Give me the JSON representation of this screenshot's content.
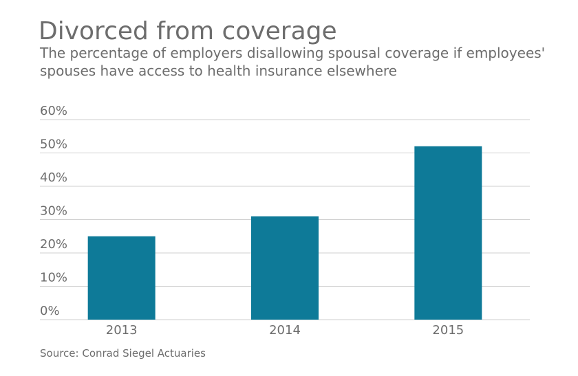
{
  "chart_data": {
    "type": "bar",
    "title": "Divorced from coverage",
    "subtitle": "The percentage of employers disallowing spousal coverage if employees' spouses have access to health insurance elsewhere",
    "categories": [
      "2013",
      "2014",
      "2015"
    ],
    "values": [
      25,
      31,
      52
    ],
    "value_unit": "%",
    "ylim": [
      0,
      60
    ],
    "yticks": [
      "0%",
      "10%",
      "20%",
      "30%",
      "40%",
      "50%",
      "60%"
    ],
    "ytick_values": [
      0,
      10,
      20,
      30,
      40,
      50,
      60
    ],
    "grid": true,
    "legend": "none",
    "xlabel": "",
    "ylabel": "",
    "source": "Source: Conrad Siegel Actuaries",
    "colors": {
      "bar": "#0e7a98",
      "grid": "#cfcfcf",
      "text": "#6d6d6d"
    }
  }
}
